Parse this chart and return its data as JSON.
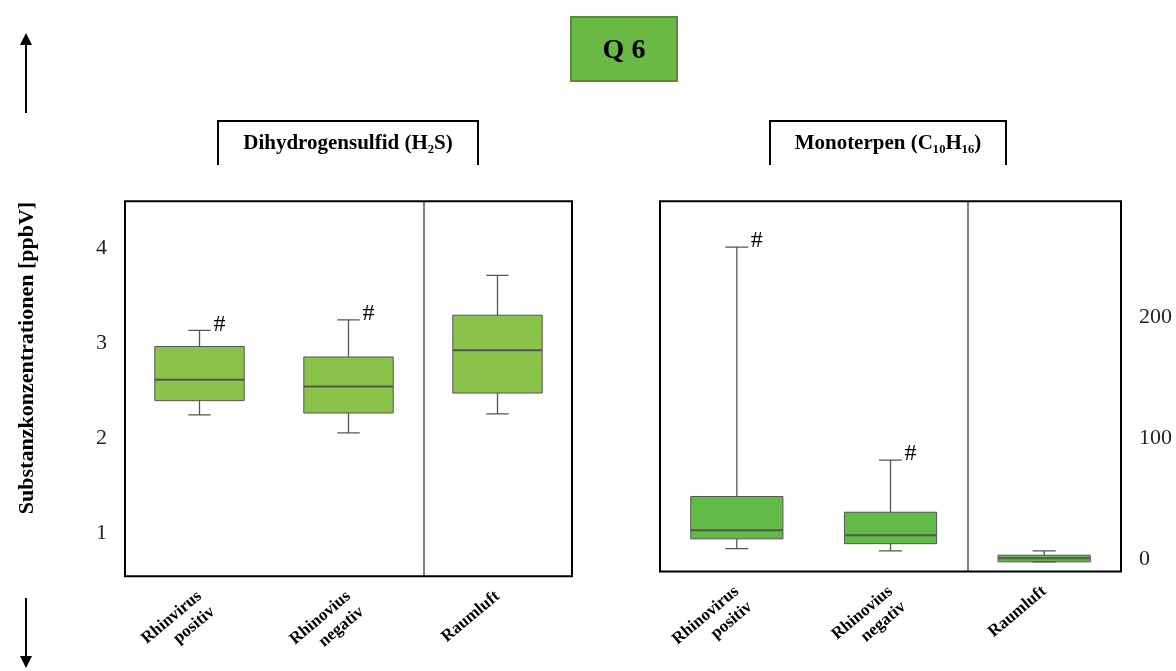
{
  "chart_data": [
    {
      "type": "box",
      "title": "Dihydrogensulfid (H₂S)",
      "ylabel": "Substanzkonzentrationen [ppbV]",
      "categories": [
        "Rhinvirus positiv",
        "Rhinovius negativ",
        "Raumluft"
      ],
      "series": [
        {
          "color": "#8bc34a",
          "boxes": [
            {
              "low": 2.25,
              "q1": 2.4,
              "median": 2.62,
              "q3": 2.97,
              "high": 3.14
            },
            {
              "low": 2.06,
              "q1": 2.27,
              "median": 2.55,
              "q3": 2.86,
              "high": 3.25
            },
            {
              "low": 2.26,
              "q1": 2.48,
              "median": 2.93,
              "q3": 3.3,
              "high": 3.72
            }
          ]
        }
      ],
      "ylim": [
        0.55,
        4.5
      ],
      "yticks": [
        1,
        2,
        3,
        4
      ],
      "annotations": [
        "Q 6",
        {
          "text": "#",
          "x": "Rhinvirus positiv",
          "y": 3.14
        },
        {
          "text": "#",
          "x": "Rhinovius negativ",
          "y": 3.25
        }
      ]
    },
    {
      "type": "box",
      "title": "Monoterpen (C₁₀H₁₆)",
      "categories": [
        "Rhinovirus positiv",
        "Rhinovius negativ",
        "Raumluft"
      ],
      "series": [
        {
          "color": "#62bb47",
          "boxes": [
            {
              "low": 9,
              "q1": 17,
              "median": 24,
              "q3": 52,
              "high": 258
            },
            {
              "low": 7,
              "q1": 13,
              "median": 20,
              "q3": 39,
              "high": 82
            },
            {
              "low": -2,
              "q1": -2,
              "median": 1,
              "q3": 3.5,
              "high": 7
            }
          ]
        }
      ],
      "ylim": [
        -10,
        296
      ],
      "yticks": [
        0,
        100,
        200
      ],
      "annotations": [
        {
          "text": "#",
          "x": "Rhinovirus positiv",
          "y": 258
        },
        {
          "text": "#",
          "x": "Rhinovius negativ",
          "y": 82
        }
      ]
    }
  ]
}
